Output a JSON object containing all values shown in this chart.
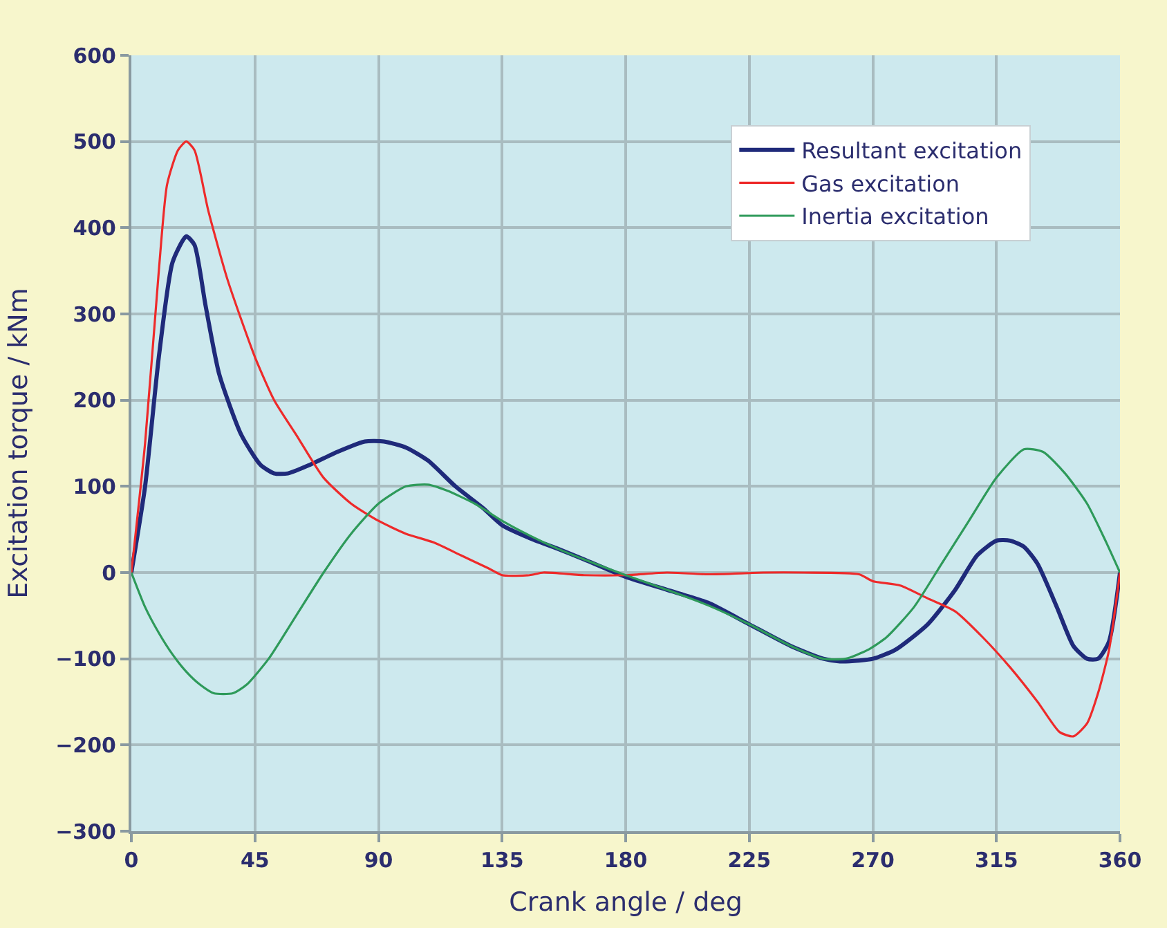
{
  "chart_data": {
    "type": "line",
    "xlabel": "Crank angle / deg",
    "ylabel": "Excitation torque / kNm",
    "xlim": [
      0,
      360
    ],
    "xticks": [
      0,
      45,
      90,
      135,
      180,
      225,
      270,
      315,
      360
    ],
    "ylim": [
      -300,
      600
    ],
    "yticks": [
      -300,
      -200,
      -100,
      0,
      100,
      200,
      300,
      400,
      500,
      600
    ],
    "grid": true,
    "legend": "top right",
    "marker": "none",
    "line_style": "solid",
    "series": [
      {
        "name": "Resultant excitation",
        "color": "#1f2a7a",
        "x": [
          0,
          5,
          10,
          15,
          20,
          23,
          27,
          32,
          40,
          47,
          52,
          57,
          65,
          75,
          85,
          92,
          100,
          108,
          118,
          128,
          135,
          145,
          155,
          165,
          180,
          195,
          210,
          225,
          240,
          252,
          258,
          265,
          270,
          278,
          290,
          300,
          308,
          315,
          320,
          325,
          330,
          337,
          343,
          348,
          352,
          356,
          360
        ],
        "values": [
          0,
          100,
          250,
          360,
          390,
          380,
          310,
          230,
          160,
          125,
          115,
          115,
          125,
          140,
          152,
          152,
          145,
          130,
          100,
          75,
          55,
          40,
          28,
          15,
          -5,
          -20,
          -35,
          -60,
          -85,
          -100,
          -103,
          -102,
          -100,
          -90,
          -60,
          -20,
          20,
          37,
          37,
          30,
          10,
          -40,
          -85,
          -100,
          -100,
          -80,
          0
        ]
      },
      {
        "name": "Gas excitation",
        "color": "#ee2a2a",
        "x": [
          0,
          5,
          10,
          13,
          17,
          20,
          23,
          28,
          35,
          45,
          52,
          60,
          70,
          80,
          90,
          100,
          110,
          120,
          130,
          135,
          145,
          150,
          165,
          180,
          195,
          210,
          230,
          245,
          265,
          270,
          280,
          290,
          300,
          310,
          320,
          330,
          338,
          343,
          348,
          352,
          356,
          360
        ],
        "values": [
          0,
          150,
          350,
          450,
          490,
          500,
          490,
          420,
          340,
          250,
          200,
          160,
          110,
          80,
          60,
          45,
          35,
          20,
          5,
          -3,
          -3,
          0,
          -3,
          -3,
          0,
          -2,
          0,
          0,
          -2,
          -10,
          -15,
          -30,
          -45,
          -75,
          -110,
          -150,
          -185,
          -190,
          -175,
          -140,
          -90,
          0
        ]
      },
      {
        "name": "Inertia excitation",
        "color": "#2e9a5a",
        "x": [
          0,
          5,
          10,
          15,
          20,
          25,
          30,
          37,
          42,
          50,
          60,
          70,
          80,
          90,
          100,
          108,
          115,
          125,
          135,
          145,
          155,
          165,
          180,
          195,
          210,
          225,
          240,
          252,
          260,
          268,
          275,
          285,
          295,
          305,
          315,
          325,
          332,
          340,
          348,
          355,
          360
        ],
        "values": [
          0,
          -40,
          -70,
          -95,
          -115,
          -130,
          -140,
          -140,
          -130,
          -100,
          -50,
          0,
          45,
          80,
          100,
          102,
          95,
          80,
          60,
          43,
          28,
          15,
          -3,
          -20,
          -38,
          -60,
          -85,
          -100,
          -100,
          -90,
          -75,
          -40,
          10,
          60,
          110,
          143,
          140,
          115,
          80,
          35,
          0
        ]
      }
    ]
  }
}
